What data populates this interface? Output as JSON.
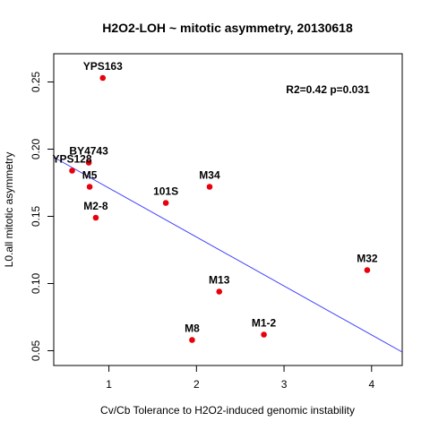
{
  "chart_data": {
    "type": "scatter",
    "title": "H2O2-LOH ~ mitotic asymmetry, 20130618",
    "xlabel": "Cv/Cb Tolerance to H2O2-induced genomic instability",
    "ylabel": "L0.all mitotic asymmetry",
    "xlim": [
      0.37,
      4.35
    ],
    "ylim": [
      0.039,
      0.271
    ],
    "xticks": [
      1,
      2,
      3,
      4
    ],
    "yticks": [
      0.05,
      0.1,
      0.15,
      0.2,
      0.25
    ],
    "xtick_labels": [
      "1",
      "2",
      "3",
      "4"
    ],
    "ytick_labels": [
      "0.05",
      "0.10",
      "0.15",
      "0.20",
      "0.25"
    ],
    "grid": false,
    "point_color": "#e8000b",
    "line_color": "#3f3fff",
    "points": [
      {
        "label": "YPS163",
        "x": 0.93,
        "y": 0.253
      },
      {
        "label": "BY4743",
        "x": 0.77,
        "y": 0.19
      },
      {
        "label": "YPS128",
        "x": 0.58,
        "y": 0.184
      },
      {
        "label": "M5",
        "x": 0.78,
        "y": 0.172
      },
      {
        "label": "M2-8",
        "x": 0.85,
        "y": 0.149
      },
      {
        "label": "101S",
        "x": 1.65,
        "y": 0.16
      },
      {
        "label": "M34",
        "x": 2.15,
        "y": 0.172
      },
      {
        "label": "M32",
        "x": 3.95,
        "y": 0.11
      },
      {
        "label": "M13",
        "x": 2.26,
        "y": 0.094
      },
      {
        "label": "M8",
        "x": 1.95,
        "y": 0.058
      },
      {
        "label": "M1-2",
        "x": 2.77,
        "y": 0.062
      }
    ],
    "regression": {
      "x": [
        0.37,
        4.35
      ],
      "y": [
        0.194,
        0.049
      ]
    },
    "annotation": "R2=0.42 p=0.031"
  }
}
